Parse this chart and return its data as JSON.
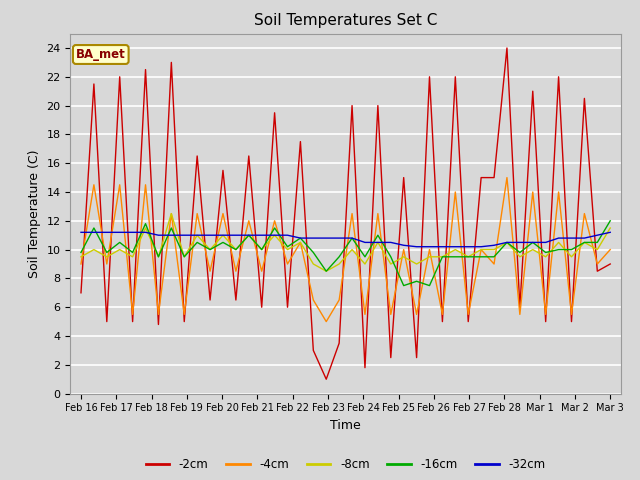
{
  "title": "Soil Temperatures Set C",
  "xlabel": "Time",
  "ylabel": "Soil Temperature (C)",
  "ylim": [
    0,
    25
  ],
  "yticks": [
    0,
    2,
    4,
    6,
    8,
    10,
    12,
    14,
    16,
    18,
    20,
    22,
    24
  ],
  "fig_bg_color": "#d8d8d8",
  "plot_bg_color": "#d8d8d8",
  "annotation_text": "BA_met",
  "annotation_bg": "#ffffcc",
  "annotation_border": "#aa8800",
  "series_colors": {
    "-2cm": "#cc0000",
    "-4cm": "#ff8800",
    "-8cm": "#cccc00",
    "-16cm": "#00aa00",
    "-32cm": "#0000cc"
  },
  "xtick_labels": [
    "Feb 16",
    "Feb 17",
    "Feb 18",
    "Feb 19",
    "Feb 20",
    "Feb 21",
    "Feb 22",
    "Feb 23",
    "Feb 24",
    "Feb 25",
    "Feb 26",
    "Feb 27",
    "Feb 28",
    "Mar 1",
    "Mar 2",
    "Mar 3"
  ],
  "legend_labels": [
    "-2cm",
    "-4cm",
    "-8cm",
    "-16cm",
    "-32cm"
  ],
  "data_2cm": [
    7.0,
    21.5,
    5.0,
    22.0,
    5.0,
    22.5,
    4.8,
    23.0,
    5.0,
    16.5,
    6.5,
    15.5,
    6.5,
    16.5,
    6.0,
    19.5,
    6.0,
    17.5,
    3.0,
    1.0,
    3.5,
    20.0,
    1.8,
    20.0,
    2.5,
    15.0,
    2.5,
    22.0,
    5.0,
    22.0,
    5.0,
    15.0,
    15.0,
    24.0,
    6.0,
    21.0,
    5.0,
    22.0,
    5.0,
    20.5,
    8.5,
    9.0
  ],
  "data_4cm": [
    9.0,
    14.5,
    9.0,
    14.5,
    5.5,
    14.5,
    5.5,
    12.5,
    5.5,
    12.5,
    8.5,
    12.5,
    8.5,
    12.0,
    8.5,
    12.0,
    9.0,
    10.5,
    6.5,
    5.0,
    6.5,
    12.5,
    5.5,
    12.5,
    5.5,
    10.0,
    5.5,
    10.0,
    5.5,
    14.0,
    5.5,
    10.0,
    9.0,
    15.0,
    5.5,
    14.0,
    5.5,
    14.0,
    5.5,
    12.5,
    9.0,
    10.0
  ],
  "data_8cm": [
    9.5,
    10.0,
    9.5,
    10.0,
    9.5,
    11.5,
    9.5,
    12.5,
    9.5,
    11.0,
    10.0,
    11.0,
    10.0,
    11.0,
    10.0,
    11.0,
    10.0,
    10.5,
    9.0,
    8.5,
    9.0,
    10.0,
    9.0,
    10.5,
    9.0,
    9.5,
    9.0,
    9.5,
    9.5,
    10.0,
    9.5,
    10.0,
    10.0,
    10.5,
    9.5,
    10.0,
    9.5,
    10.5,
    9.5,
    10.5,
    10.0,
    11.5
  ],
  "data_16cm": [
    9.8,
    11.5,
    9.8,
    10.5,
    9.8,
    11.8,
    9.5,
    11.5,
    9.5,
    10.5,
    10.0,
    10.5,
    10.0,
    11.0,
    10.0,
    11.5,
    10.2,
    10.8,
    9.8,
    8.5,
    9.5,
    10.8,
    9.5,
    11.0,
    9.5,
    7.5,
    7.8,
    7.5,
    9.5,
    9.5,
    9.5,
    9.5,
    9.5,
    10.5,
    9.8,
    10.5,
    9.8,
    10.0,
    10.0,
    10.5,
    10.5,
    12.0
  ],
  "data_32cm": [
    11.2,
    11.2,
    11.2,
    11.2,
    11.2,
    11.2,
    11.0,
    11.0,
    11.0,
    11.0,
    11.0,
    11.0,
    11.0,
    11.0,
    11.0,
    11.0,
    11.0,
    10.8,
    10.8,
    10.8,
    10.8,
    10.8,
    10.5,
    10.5,
    10.5,
    10.3,
    10.2,
    10.2,
    10.2,
    10.2,
    10.2,
    10.2,
    10.3,
    10.5,
    10.5,
    10.5,
    10.5,
    10.8,
    10.8,
    10.8,
    11.0,
    11.2
  ]
}
